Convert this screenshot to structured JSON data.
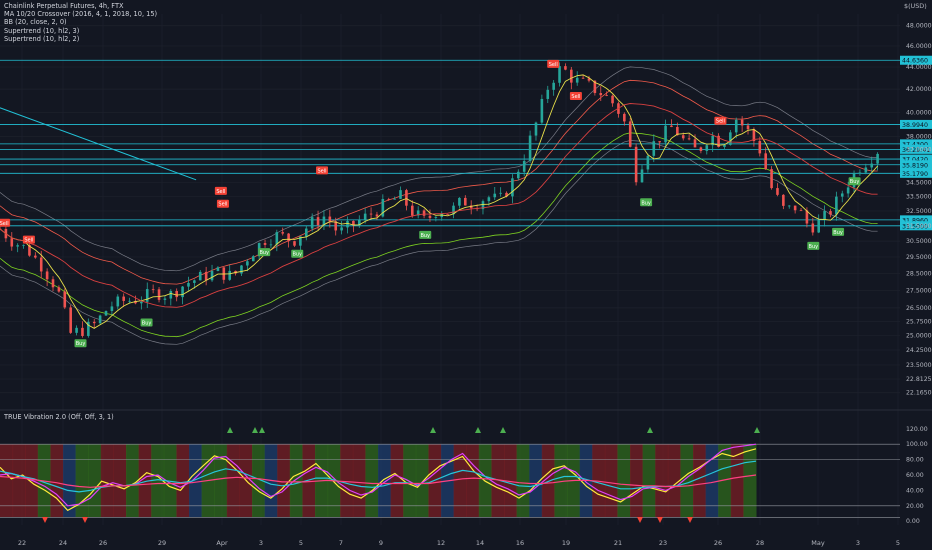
{
  "legend": {
    "title": "Chainlink Perpetual Futures, 4h, FTX",
    "indicators": [
      "MA 10/20 Crossover (2016, 4, 1, 2018, 10, 15)",
      "BB (20, close, 2, 0)",
      "Supertrend (10, hl2, 3)",
      "Supertrend (10, hl2, 2)"
    ],
    "oscillator": "TRUE Vibration 2.0 (Off, Off, 3, 1)"
  },
  "currency": "$(USD)",
  "colors": {
    "background": "#131722",
    "grid": "#1e222d",
    "axis_text": "#b2b5be",
    "up": "#26a69a",
    "down": "#ef5350",
    "cyan_line": "#22c1d6",
    "label_bg": "#22c1d6",
    "buy": "#4caf50",
    "sell": "#f44336",
    "bb": "#787b86",
    "ma_fast": "#e8e04a",
    "ma_slow": "#d84040",
    "st_red": "#f15a4a",
    "st_green": "#7ed321"
  },
  "chart_data": [
    {
      "type": "candlestick",
      "title": "Chainlink Perpetual Futures, 4h, FTX",
      "ylabel": "$(USD)",
      "ylim": [
        21.6,
        49.2
      ],
      "log_scale": true,
      "x_tick_labels": [
        "22",
        "24",
        "26",
        "29",
        "Apr",
        "3",
        "5",
        "7",
        "9",
        "12",
        "14",
        "16",
        "19",
        "21",
        "23",
        "26",
        "28",
        "May",
        "3",
        "5"
      ],
      "y_tick_labels": [
        "48.0000",
        "46.0000",
        "44.0000",
        "42.0000",
        "40.0000",
        "38.0000",
        "37.0000",
        "34.5000",
        "33.5000",
        "32.5000",
        "31.5000",
        "30.5000",
        "29.5000",
        "28.5000",
        "27.5000",
        "26.5000",
        "25.7500",
        "25.0000",
        "24.2500",
        "23.5000",
        "22.8125",
        "22.1650"
      ],
      "horizontal_levels": [
        {
          "label": "44.6360",
          "value": 44.636
        },
        {
          "label": "38.9940",
          "value": 38.994
        },
        {
          "label": "37.4300",
          "value": 37.43
        },
        {
          "label": "36:29:41",
          "value": 37.0
        },
        {
          "label": "37.0420",
          "value": 36.25
        },
        {
          "label": "35.8190",
          "value": 35.819
        },
        {
          "label": "35.1790",
          "value": 35.179
        },
        {
          "label": "31.8960",
          "value": 31.896
        },
        {
          "label": "31.5000",
          "value": 31.5
        }
      ],
      "trendline": {
        "from": [
          15.2,
          44.3
        ],
        "to": [
          30.5,
          34.7
        ]
      },
      "price_path": [
        [
          21.0,
          31.3
        ],
        [
          21.6,
          30.5
        ],
        [
          22.3,
          30.0
        ],
        [
          23.0,
          29.0
        ],
        [
          23.8,
          27.5
        ],
        [
          24.4,
          25.1
        ],
        [
          25.0,
          25.3
        ],
        [
          25.6,
          25.6
        ],
        [
          26.3,
          26.6
        ],
        [
          27.0,
          26.9
        ],
        [
          27.8,
          27.0
        ],
        [
          28.5,
          27.4
        ],
        [
          29.2,
          27.2
        ],
        [
          30.0,
          27.9
        ],
        [
          30.8,
          28.3
        ],
        [
          31.5,
          28.6
        ],
        [
          32.3,
          28.3
        ],
        [
          33.0,
          29.5
        ],
        [
          33.8,
          30.6
        ],
        [
          34.5,
          30.9
        ],
        [
          35.2,
          30.5
        ],
        [
          36.0,
          31.6
        ],
        [
          36.8,
          32.2
        ],
        [
          37.4,
          31.0
        ],
        [
          38.0,
          31.5
        ],
        [
          38.6,
          32.0
        ],
        [
          39.2,
          32.5
        ],
        [
          39.8,
          33.1
        ],
        [
          40.4,
          33.5
        ],
        [
          41.0,
          32.4
        ],
        [
          41.6,
          31.8
        ],
        [
          42.2,
          32.6
        ],
        [
          42.8,
          32.4
        ],
        [
          43.4,
          33.2
        ],
        [
          44.0,
          33.0
        ],
        [
          44.6,
          33.5
        ],
        [
          45.2,
          33.2
        ],
        [
          45.8,
          34.5
        ],
        [
          46.4,
          36.5
        ],
        [
          47.0,
          39.2
        ],
        [
          47.6,
          42.5
        ],
        [
          48.2,
          44.0
        ],
        [
          48.8,
          42.8
        ],
        [
          49.4,
          42.4
        ],
        [
          50.0,
          41.8
        ],
        [
          50.6,
          41.0
        ],
        [
          51.2,
          39.5
        ],
        [
          51.8,
          35.0
        ],
        [
          52.4,
          37.0
        ],
        [
          53.0,
          38.0
        ],
        [
          53.6,
          38.8
        ],
        [
          54.2,
          37.5
        ],
        [
          54.8,
          36.8
        ],
        [
          55.4,
          38.2
        ],
        [
          56.0,
          37.4
        ],
        [
          56.6,
          39.6
        ],
        [
          57.2,
          38.5
        ],
        [
          57.8,
          37.0
        ],
        [
          58.4,
          34.0
        ],
        [
          59.0,
          32.5
        ],
        [
          59.6,
          32.8
        ],
        [
          60.2,
          31.4
        ],
        [
          60.8,
          31.8
        ],
        [
          61.4,
          32.8
        ],
        [
          62.0,
          34.3
        ],
        [
          62.6,
          35.6
        ],
        [
          63.2,
          36.4
        ],
        [
          63.8,
          37.4
        ]
      ],
      "signal_labels": [
        {
          "text": "Sell",
          "x": 21.2,
          "y": 31.7,
          "kind": "sell"
        },
        {
          "text": "Sell",
          "x": 22.4,
          "y": 30.6,
          "kind": "sell"
        },
        {
          "text": "Buy",
          "x": 24.9,
          "y": 24.6,
          "kind": "buy"
        },
        {
          "text": "Buy",
          "x": 28.1,
          "y": 25.7,
          "kind": "buy"
        },
        {
          "text": "Sell",
          "x": 31.7,
          "y": 33.9,
          "kind": "sell"
        },
        {
          "text": "Sell",
          "x": 31.8,
          "y": 33.0,
          "kind": "sell"
        },
        {
          "text": "Buy",
          "x": 33.8,
          "y": 29.8,
          "kind": "buy"
        },
        {
          "text": "Buy",
          "x": 35.4,
          "y": 29.7,
          "kind": "buy"
        },
        {
          "text": "Sell",
          "x": 36.6,
          "y": 35.4,
          "kind": "sell"
        },
        {
          "text": "Buy",
          "x": 41.6,
          "y": 30.9,
          "kind": "buy"
        },
        {
          "text": "Sell",
          "x": 47.8,
          "y": 44.3,
          "kind": "sell"
        },
        {
          "text": "Sell",
          "x": 48.9,
          "y": 41.4,
          "kind": "sell"
        },
        {
          "text": "Buy",
          "x": 52.3,
          "y": 33.1,
          "kind": "buy"
        },
        {
          "text": "Sell",
          "x": 55.9,
          "y": 39.3,
          "kind": "sell"
        },
        {
          "text": "Buy",
          "x": 60.4,
          "y": 30.2,
          "kind": "buy"
        },
        {
          "text": "Buy",
          "x": 61.6,
          "y": 31.1,
          "kind": "buy"
        },
        {
          "text": "Buy",
          "x": 62.4,
          "y": 34.6,
          "kind": "buy"
        }
      ]
    },
    {
      "type": "line",
      "title": "TRUE Vibration 2.0 (Off, Off, 3, 1)",
      "ylim": [
        -5,
        125
      ],
      "y_tick_labels": [
        "120.00",
        "100.00",
        "80.00",
        "60.00",
        "40.00",
        "20.00",
        "0.00"
      ],
      "levels": [
        100,
        80,
        20,
        5
      ],
      "series": [
        {
          "color": "#ffeb3b",
          "values": [
            70,
            55,
            60,
            48,
            40,
            30,
            14,
            22,
            35,
            52,
            47,
            42,
            50,
            63,
            58,
            45,
            40,
            58,
            72,
            85,
            80,
            66,
            50,
            38,
            30,
            42,
            58,
            65,
            75,
            60,
            45,
            35,
            30,
            40,
            54,
            62,
            50,
            44,
            60,
            72,
            78,
            84,
            65,
            52,
            44,
            38,
            30,
            40,
            55,
            68,
            72,
            60,
            45,
            35,
            30,
            25,
            35,
            45,
            42,
            38,
            50,
            62,
            70,
            80,
            88,
            84,
            90,
            94
          ]
        },
        {
          "color": "#e040fb",
          "values": [
            60,
            62,
            58,
            52,
            45,
            35,
            20,
            22,
            30,
            45,
            50,
            46,
            48,
            58,
            60,
            50,
            44,
            52,
            66,
            82,
            84,
            72,
            56,
            42,
            32,
            38,
            52,
            62,
            70,
            64,
            50,
            40,
            34,
            38,
            50,
            60,
            54,
            46,
            56,
            68,
            80,
            88,
            72,
            58,
            48,
            42,
            34,
            38,
            50,
            62,
            70,
            64,
            50,
            40,
            34,
            28,
            32,
            42,
            44,
            40,
            46,
            58,
            68,
            80,
            92,
            96,
            98,
            100
          ]
        },
        {
          "color": "#26c6da",
          "values": [
            65,
            62,
            58,
            55,
            50,
            45,
            40,
            38,
            40,
            44,
            46,
            46,
            48,
            52,
            54,
            52,
            50,
            52,
            58,
            64,
            68,
            66,
            60,
            54,
            48,
            46,
            48,
            52,
            56,
            56,
            52,
            48,
            45,
            44,
            46,
            50,
            50,
            48,
            50,
            56,
            62,
            66,
            64,
            58,
            54,
            50,
            46,
            45,
            48,
            54,
            58,
            58,
            54,
            50,
            46,
            42,
            42,
            44,
            45,
            45,
            46,
            50,
            56,
            62,
            68,
            72,
            76,
            78
          ]
        },
        {
          "color": "#ff4081",
          "values": [
            58,
            57,
            56,
            54,
            52,
            50,
            47,
            45,
            44,
            45,
            46,
            46,
            47,
            48,
            49,
            49,
            49,
            50,
            52,
            54,
            56,
            57,
            56,
            55,
            53,
            51,
            51,
            51,
            52,
            53,
            52,
            51,
            50,
            49,
            49,
            49,
            49,
            49,
            49,
            51,
            53,
            55,
            56,
            55,
            54,
            52,
            50,
            49,
            49,
            50,
            52,
            53,
            53,
            52,
            50,
            48,
            47,
            46,
            46,
            45,
            45,
            46,
            48,
            50,
            53,
            56,
            58,
            60
          ]
        }
      ],
      "background_zones": [
        "red",
        "red",
        "red",
        "green",
        "red",
        "blue",
        "green",
        "green",
        "red",
        "red",
        "green",
        "red",
        "green",
        "green",
        "red",
        "blue",
        "green",
        "green",
        "red",
        "red",
        "green",
        "blue",
        "red",
        "green",
        "red",
        "green",
        "green",
        "red",
        "red",
        "green",
        "blue",
        "red",
        "green",
        "green",
        "red",
        "blue",
        "red",
        "red",
        "green",
        "red",
        "red",
        "green",
        "blue",
        "red",
        "green",
        "green",
        "blue",
        "red",
        "red",
        "green",
        "red",
        "green",
        "red",
        "red",
        "green",
        "red",
        "blue",
        "green",
        "red",
        "green"
      ]
    }
  ]
}
